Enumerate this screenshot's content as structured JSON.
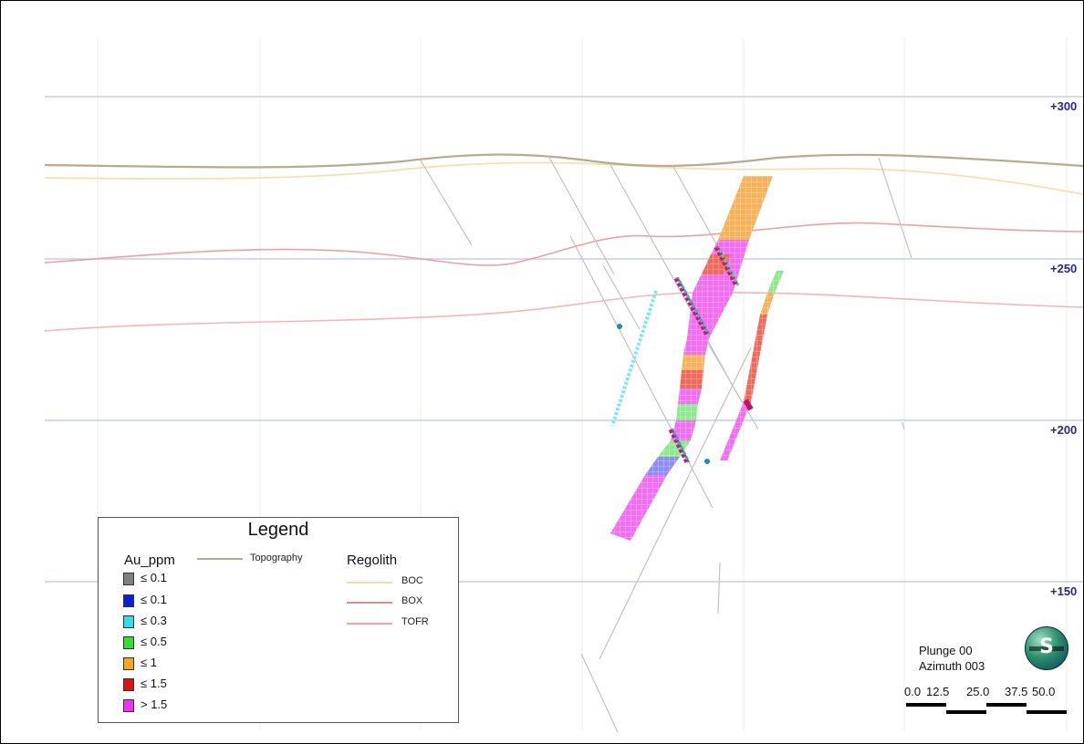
{
  "elevation_labels": [
    "+300",
    "+250",
    "+200",
    "+150"
  ],
  "legend": {
    "title": "Legend",
    "au_heading": "Au_ppm",
    "au_classes": [
      {
        "label": "≤ 0.1",
        "color": "#808080"
      },
      {
        "label": "≤ 0.1",
        "color": "#0a1fd8"
      },
      {
        "label": "≤ 0.3",
        "color": "#33dde8"
      },
      {
        "label": "≤ 0.5",
        "color": "#33dd33"
      },
      {
        "label": "≤ 1",
        "color": "#f5a52a"
      },
      {
        "label": "≤ 1.5",
        "color": "#dd1111"
      },
      {
        "label": "> 1.5",
        "color": "#ee33ee"
      }
    ],
    "topography": {
      "label": "Topography",
      "color": "#b5ab8f"
    },
    "regolith_heading": "Regolith",
    "regolith": [
      {
        "label": "BOC",
        "color": "#f6dca8"
      },
      {
        "label": "BOX",
        "color": "#e88a8a"
      },
      {
        "label": "TOFR",
        "color": "#f3a0a0"
      }
    ]
  },
  "orientation": {
    "plunge": "Plunge 00",
    "azimuth": "Azimuth 003"
  },
  "compass_letter": "S",
  "scale_ticks": [
    "0.0",
    "12.5",
    "25.0",
    "37.5",
    "50.0"
  ],
  "colors": {
    "elevation_line": "#c8c8f8",
    "vertical_grid": "#e6e6e6",
    "drillhole": "#bdbdbd"
  }
}
